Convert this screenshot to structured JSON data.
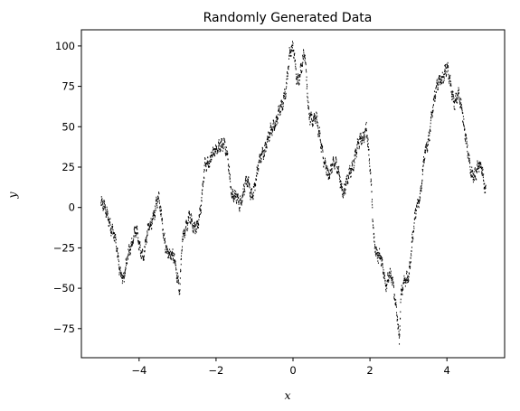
{
  "chart_data": {
    "type": "scatter",
    "title": "Randomly Generated Data",
    "xlabel": "x",
    "ylabel": "y",
    "xlim": [
      -5.5,
      5.5
    ],
    "ylim": [
      -93,
      110
    ],
    "xticks": [
      -4,
      -2,
      0,
      2,
      4
    ],
    "yticks": [
      -75,
      -50,
      -25,
      0,
      25,
      50,
      75,
      100
    ],
    "grid": false,
    "marker": "dot",
    "color": "#000000",
    "noise_amplitude": 3,
    "series": [
      {
        "x": [
          -5.0,
          -4.9,
          -4.8,
          -4.7,
          -4.6,
          -4.5,
          -4.4,
          -4.3,
          -4.2,
          -4.1,
          -4.0,
          -3.9,
          -3.8,
          -3.7,
          -3.6,
          -3.5,
          -3.4,
          -3.3,
          -3.2,
          -3.1,
          -3.0,
          -2.95,
          -2.9,
          -2.8,
          -2.7,
          -2.6,
          -2.5,
          -2.4,
          -2.3,
          -2.2,
          -2.1,
          -2.0,
          -1.9,
          -1.8,
          -1.7,
          -1.6,
          -1.5,
          -1.4,
          -1.3,
          -1.2,
          -1.1,
          -1.0,
          -0.9,
          -0.8,
          -0.7,
          -0.6,
          -0.5,
          -0.4,
          -0.3,
          -0.2,
          -0.1,
          0.0,
          0.1,
          0.2,
          0.3,
          0.4,
          0.5,
          0.6,
          0.7,
          0.8,
          0.9,
          1.0,
          1.1,
          1.2,
          1.3,
          1.4,
          1.5,
          1.6,
          1.7,
          1.8,
          1.9,
          2.0,
          2.1,
          2.2,
          2.3,
          2.4,
          2.5,
          2.6,
          2.7,
          2.75,
          2.8,
          2.9,
          3.0,
          3.1,
          3.2,
          3.3,
          3.4,
          3.5,
          3.6,
          3.7,
          3.8,
          3.9,
          4.0,
          4.1,
          4.2,
          4.3,
          4.4,
          4.5,
          4.6,
          4.7,
          4.8,
          4.9,
          5.0
        ],
        "y": [
          2,
          -2,
          -5,
          -15,
          -25,
          -38,
          -45,
          -30,
          -20,
          -15,
          -25,
          -28,
          -18,
          -10,
          0,
          5,
          -10,
          -25,
          -33,
          -28,
          -45,
          -52,
          -25,
          -10,
          -5,
          -15,
          -10,
          0,
          25,
          30,
          32,
          35,
          42,
          38,
          30,
          10,
          5,
          2,
          12,
          15,
          8,
          15,
          25,
          35,
          40,
          45,
          52,
          58,
          60,
          75,
          95,
          97,
          80,
          85,
          95,
          60,
          52,
          55,
          45,
          25,
          20,
          28,
          25,
          20,
          10,
          15,
          25,
          32,
          38,
          45,
          50,
          20,
          -20,
          -30,
          -35,
          -45,
          -42,
          -50,
          -65,
          -82,
          -55,
          -45,
          -40,
          -20,
          0,
          10,
          30,
          40,
          60,
          70,
          80,
          82,
          85,
          75,
          65,
          68,
          60,
          40,
          20,
          22,
          25,
          22,
          12
        ]
      }
    ]
  }
}
